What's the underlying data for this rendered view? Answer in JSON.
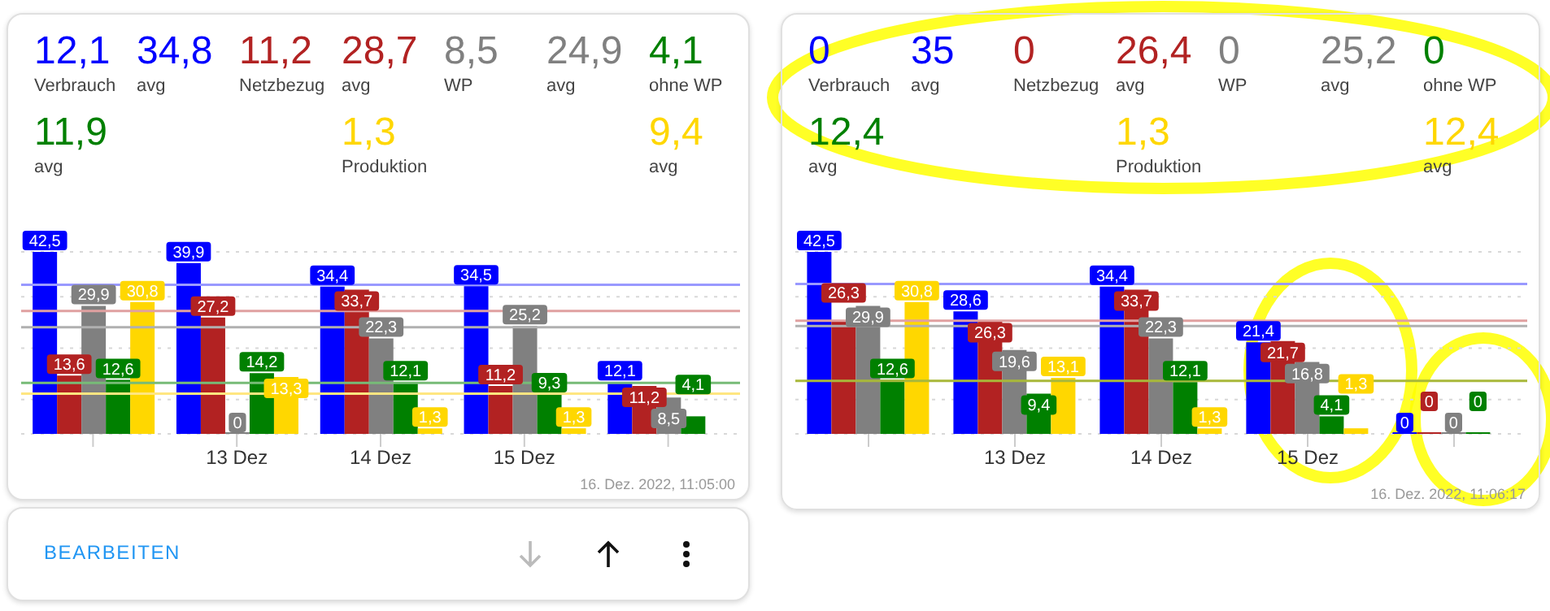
{
  "chart_data": [
    {
      "type": "other",
      "annotations": [
        "12,1",
        "Verbrauch",
        "34,8",
        "avg",
        "11,2",
        "Netzbezug",
        "28,7",
        "avg",
        "8,5",
        "WP",
        "24,9",
        "avg",
        "4,1",
        "ohne WP",
        "11,9",
        "avg",
        "1,3",
        "Produktion",
        "9,4",
        "avg"
      ]
    },
    {
      "type": "bar",
      "categories": [
        null,
        "13 Dez",
        "14 Dez",
        "15 Dez",
        null
      ],
      "series": [
        {
          "color": "#0000ff",
          "values": [
            42.5,
            39.9,
            34.4,
            34.5,
            12.1
          ],
          "value_labels": [
            "42,5",
            "39,9",
            "34,4",
            "34,5",
            "12,1"
          ]
        },
        {
          "color": "#b22222",
          "values": [
            13.6,
            27.2,
            33.7,
            11.2,
            11.2
          ],
          "value_labels": [
            "13,6",
            "27,2",
            "33,7",
            "11,2",
            "11,2"
          ]
        },
        {
          "color": "#808080",
          "values": [
            29.9,
            0,
            22.3,
            25.2,
            8.5
          ],
          "value_labels": [
            "29,9",
            "0",
            "22,3",
            "25,2",
            "8,5"
          ]
        },
        {
          "color": "#008000",
          "values": [
            12.6,
            14.2,
            12.1,
            9.3,
            4.1
          ],
          "value_labels": [
            "12,6",
            "14,2",
            "12,1",
            "9,3",
            "4,1"
          ]
        },
        {
          "color": "#ffd700",
          "values": [
            30.8,
            13.3,
            1.3,
            1.3,
            null
          ],
          "value_labels": [
            "30,8",
            "13,3",
            "1,3",
            "1,3",
            null
          ]
        }
      ],
      "tick_labels": "x",
      "grid": "y",
      "ref_lines": [
        {
          "axis": "y",
          "value": 34.8,
          "color": "#9999ff"
        },
        {
          "axis": "y",
          "value": 28.7,
          "color": "#e0a0a0"
        },
        {
          "axis": "y",
          "value": 24.9,
          "color": "#b0b0b0"
        },
        {
          "axis": "y",
          "value": 11.9,
          "color": "#77bb77"
        },
        {
          "axis": "y",
          "value": 9.4,
          "color": "#ffe680"
        }
      ],
      "annotations": [
        "16. Dez. 2022, 11:05:00",
        "BEARBEITEN"
      ]
    },
    {
      "type": "other",
      "annotations": [
        "0",
        "Verbrauch",
        "35",
        "avg",
        "0",
        "Netzbezug",
        "26,4",
        "avg",
        "0",
        "WP",
        "25,2",
        "avg",
        "0",
        "ohne WP",
        "12,4",
        "avg",
        "1,3",
        "Produktion",
        "12,4",
        "avg"
      ]
    },
    {
      "type": "bar",
      "categories": [
        null,
        "13 Dez",
        "14 Dez",
        "15 Dez",
        null
      ],
      "series": [
        {
          "color": "#0000ff",
          "values": [
            42.5,
            28.6,
            34.4,
            21.4,
            0
          ],
          "value_labels": [
            "42,5",
            "28,6",
            "34,4",
            "21,4",
            "0"
          ]
        },
        {
          "color": "#b22222",
          "values": [
            26.3,
            26.3,
            33.7,
            21.7,
            0
          ],
          "value_labels": [
            "26,3",
            "26,3",
            "33,7",
            "21,7",
            "0"
          ]
        },
        {
          "color": "#808080",
          "values": [
            29.9,
            19.6,
            22.3,
            16.8,
            0
          ],
          "value_labels": [
            "29,9",
            "19,6",
            "22,3",
            "16,8",
            "0"
          ]
        },
        {
          "color": "#008000",
          "values": [
            12.6,
            9.4,
            12.1,
            4.1,
            0
          ],
          "value_labels": [
            "12,6",
            "9,4",
            "12,1",
            "4,1",
            "0"
          ]
        },
        {
          "color": "#ffd700",
          "values": [
            30.8,
            13.1,
            1.3,
            1.3,
            null
          ],
          "value_labels": [
            "30,8",
            "13,1",
            "1,3",
            "1,3",
            null
          ]
        }
      ],
      "tick_labels": "x",
      "grid": "y",
      "ref_lines": [
        {
          "axis": "y",
          "value": 35,
          "color": "#9999ff"
        },
        {
          "axis": "y",
          "value": 26.4,
          "color": "#e0a0a0"
        },
        {
          "axis": "y",
          "value": 25.2,
          "color": "#b0b0b0"
        },
        {
          "axis": "y",
          "value": 12.4,
          "color": "#a8b83a"
        }
      ],
      "annotations": [
        "16. Dez. 2022, 11:06:17"
      ]
    }
  ]
}
